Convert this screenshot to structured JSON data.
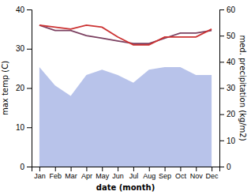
{
  "chart_data": {
    "type": "line",
    "x_label": "date (month)",
    "y_label": "max temp (C)",
    "y2_label": "med. precipitation (kg/m2)",
    "categories": [
      "Jan",
      "Feb",
      "Mar",
      "Apr",
      "May",
      "Jun",
      "Jul",
      "Aug",
      "Sep",
      "Oct",
      "Nov",
      "Dec"
    ],
    "series": [
      {
        "type": "area",
        "axis": "y2",
        "color": "#b0bce8",
        "values": [
          38,
          31,
          27,
          35,
          37,
          35,
          32,
          37,
          38,
          38,
          35,
          35
        ]
      },
      {
        "type": "line",
        "axis": "y2",
        "color": "#7b4060",
        "values": [
          54,
          52,
          52,
          50,
          49,
          48,
          47,
          47,
          49,
          51,
          51,
          52
        ]
      },
      {
        "type": "line",
        "color": "#cc3333",
        "values": [
          36,
          35.5,
          35,
          36,
          35.5,
          33,
          31,
          31,
          33,
          33,
          33,
          35
        ]
      }
    ],
    "ylim": [
      0,
      40
    ],
    "yticks": [
      0,
      10,
      20,
      30,
      40
    ],
    "y2lim": [
      0,
      60
    ],
    "y2ticks": [
      0,
      10,
      20,
      30,
      40,
      50,
      60
    ],
    "grid": false
  }
}
